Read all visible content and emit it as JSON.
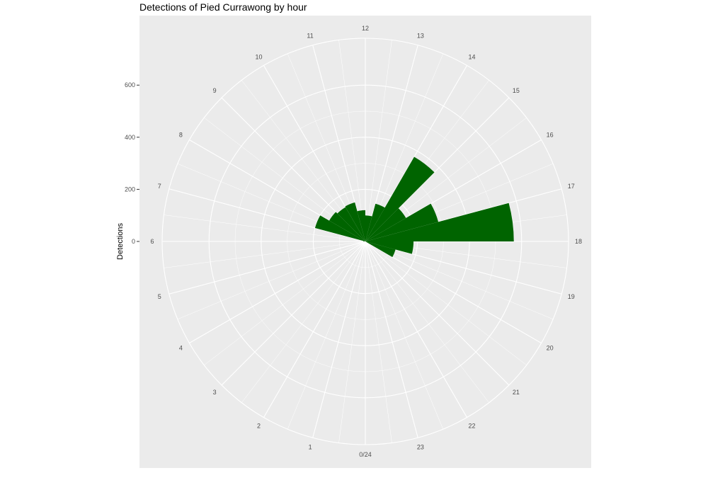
{
  "chart_data": {
    "type": "bar",
    "coord": "polar",
    "title": "Detections of Pied Currawong by hour",
    "ylabel": "Detections",
    "xlabel": "",
    "ylim": [
      0,
      780
    ],
    "y_ticks": [
      0,
      200,
      400,
      600
    ],
    "categories": [
      "0/24",
      "1",
      "2",
      "3",
      "4",
      "5",
      "6",
      "7",
      "8",
      "9",
      "10",
      "11",
      "12",
      "13",
      "14",
      "15",
      "16",
      "17",
      "18",
      "19",
      "20",
      "21",
      "22",
      "23"
    ],
    "values": [
      0,
      0,
      0,
      0,
      0,
      0,
      8,
      200,
      160,
      152,
      155,
      120,
      100,
      150,
      375,
      180,
      290,
      570,
      185,
      120,
      0,
      0,
      0,
      0
    ],
    "bar_color": "#006400",
    "panel_color": "#ebebeb",
    "grid_color": "#ffffff",
    "legend": "none"
  }
}
